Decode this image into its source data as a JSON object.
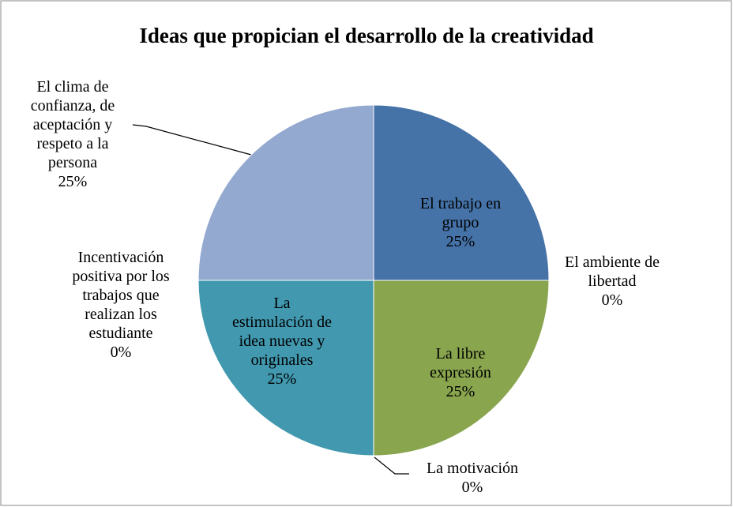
{
  "chart_data": {
    "type": "pie",
    "title": "Ideas que propician el desarrollo de la creatividad",
    "categories": [
      "El trabajo en grupo",
      "El ambiente de libertad",
      "La libre expresión",
      "La motivación",
      "La estimulación de idea nuevas y originales",
      "Incentivación positiva por los trabajos que realizan los estudiante",
      "El clima de confianza, de aceptación y respeto a la persona"
    ],
    "values": [
      25,
      0,
      25,
      0,
      25,
      0,
      25
    ],
    "value_labels": [
      "25%",
      "0%",
      "25%",
      "0%",
      "25%",
      "0%",
      "25%"
    ],
    "colors": [
      "#4572a7",
      "#aa4643",
      "#89a54e",
      "#71588f",
      "#4198af",
      "#db843d",
      "#93a9cf"
    ]
  }
}
